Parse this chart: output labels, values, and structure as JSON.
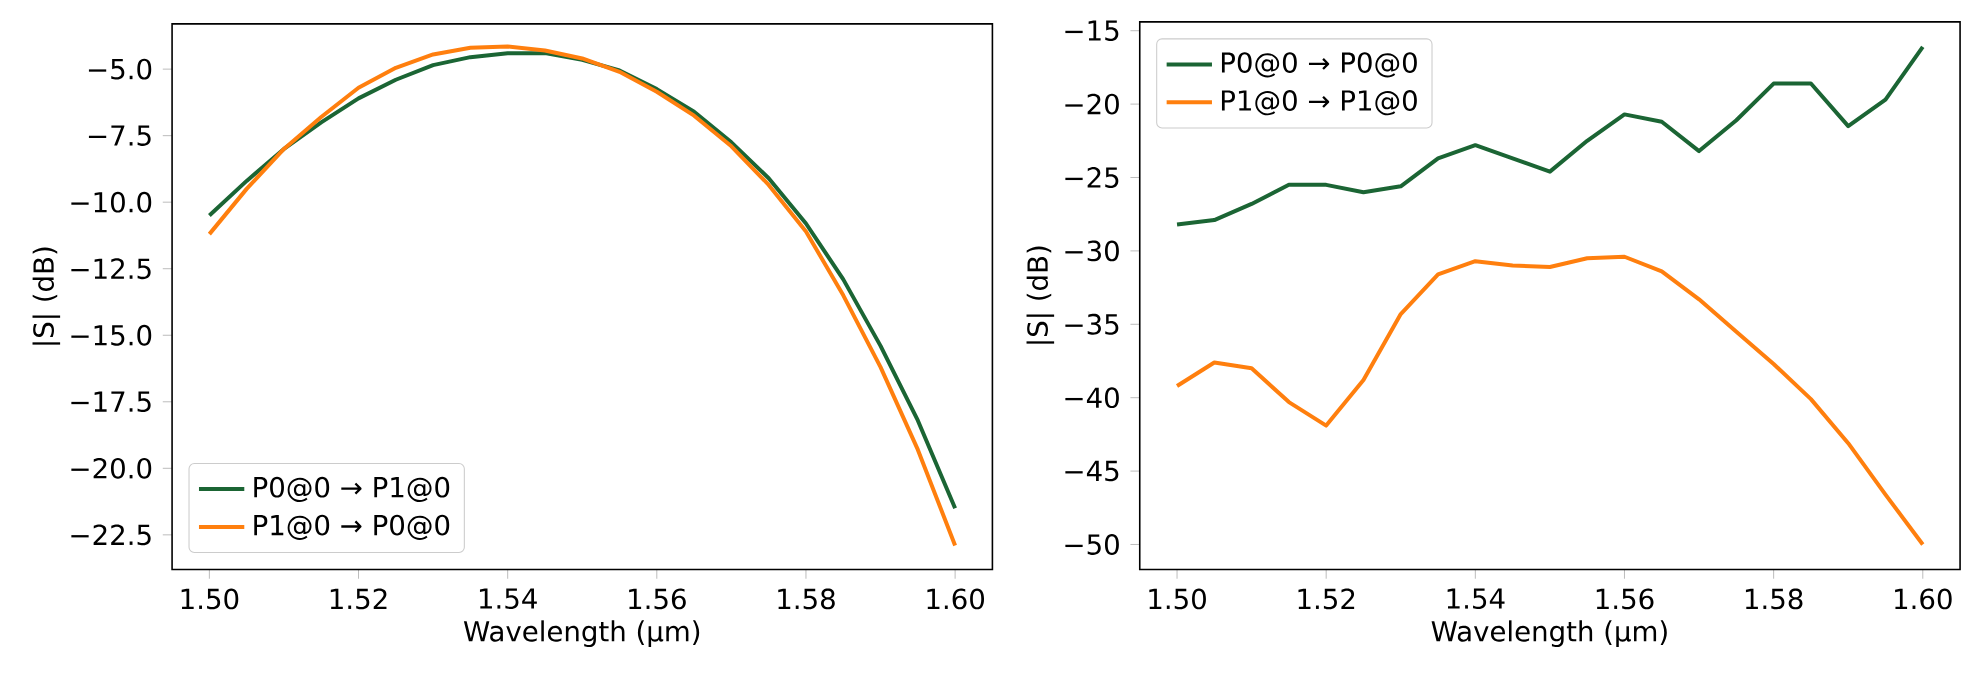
{
  "chart_data": [
    {
      "type": "line",
      "xlabel": "Wavelength (μm)",
      "ylabel": "|S| (dB)",
      "x": [
        1.5,
        1.505,
        1.51,
        1.515,
        1.52,
        1.525,
        1.53,
        1.535,
        1.54,
        1.545,
        1.55,
        1.555,
        1.56,
        1.565,
        1.57,
        1.575,
        1.58,
        1.585,
        1.59,
        1.595,
        1.6
      ],
      "series": [
        {
          "name": "P0@0 → P1@0",
          "color": "#1b6534",
          "values": [
            -10.5,
            -9.2,
            -8.0,
            -7.0,
            -6.1,
            -5.4,
            -4.85,
            -4.55,
            -4.4,
            -4.4,
            -4.65,
            -5.05,
            -5.75,
            -6.6,
            -7.75,
            -9.1,
            -10.8,
            -12.9,
            -15.4,
            -18.2,
            -21.5
          ]
        },
        {
          "name": "P1@0 → P0@0",
          "color": "#ff7f0e",
          "values": [
            -11.2,
            -9.5,
            -8.0,
            -6.8,
            -5.7,
            -4.95,
            -4.45,
            -4.2,
            -4.15,
            -4.3,
            -4.6,
            -5.1,
            -5.85,
            -6.75,
            -7.9,
            -9.35,
            -11.1,
            -13.5,
            -16.2,
            -19.3,
            -22.9
          ]
        }
      ],
      "xlim": [
        1.495,
        1.605
      ],
      "ylim": [
        -23.8,
        -3.3
      ],
      "xticks": [
        {
          "value": 1.5,
          "label": "1.50"
        },
        {
          "value": 1.52,
          "label": "1.52"
        },
        {
          "value": 1.54,
          "label": "1.54"
        },
        {
          "value": 1.56,
          "label": "1.56"
        },
        {
          "value": 1.58,
          "label": "1.58"
        },
        {
          "value": 1.6,
          "label": "1.60"
        }
      ],
      "yticks": [
        {
          "value": -22.5,
          "label": "−22.5"
        },
        {
          "value": -20,
          "label": "−20.0"
        },
        {
          "value": -17.5,
          "label": "−17.5"
        },
        {
          "value": -15,
          "label": "−15.0"
        },
        {
          "value": -12.5,
          "label": "−12.5"
        },
        {
          "value": -10,
          "label": "−10.0"
        },
        {
          "value": -7.5,
          "label": "−7.5"
        },
        {
          "value": -5,
          "label": "−5.0"
        }
      ],
      "legend": "bottom left"
    },
    {
      "type": "line",
      "xlabel": "Wavelength (μm)",
      "ylabel": "|S| (dB)",
      "x": [
        1.5,
        1.505,
        1.51,
        1.515,
        1.52,
        1.525,
        1.53,
        1.535,
        1.54,
        1.545,
        1.55,
        1.555,
        1.56,
        1.565,
        1.57,
        1.575,
        1.58,
        1.585,
        1.59,
        1.595,
        1.6
      ],
      "series": [
        {
          "name": "P0@0 → P0@0",
          "color": "#1b6534",
          "values": [
            -28.2,
            -27.9,
            -26.8,
            -25.5,
            -25.5,
            -26.0,
            -25.6,
            -23.7,
            -22.8,
            -23.7,
            -24.6,
            -22.5,
            -20.7,
            -21.2,
            -23.2,
            -21.1,
            -18.6,
            -18.6,
            -21.5,
            -19.7,
            -16.1
          ]
        },
        {
          "name": "P1@0 → P1@0",
          "color": "#ff7f0e",
          "values": [
            -39.2,
            -37.6,
            -38.0,
            -40.3,
            -41.9,
            -38.8,
            -34.3,
            -31.6,
            -30.7,
            -31.0,
            -31.1,
            -30.5,
            -30.4,
            -31.4,
            -33.3,
            -35.5,
            -37.7,
            -40.1,
            -43.1,
            -46.6,
            -50.0
          ]
        }
      ],
      "xlim": [
        1.495,
        1.605
      ],
      "ylim": [
        -51.7,
        -14.4
      ],
      "xticks": [
        {
          "value": 1.5,
          "label": "1.50"
        },
        {
          "value": 1.52,
          "label": "1.52"
        },
        {
          "value": 1.54,
          "label": "1.54"
        },
        {
          "value": 1.56,
          "label": "1.56"
        },
        {
          "value": 1.58,
          "label": "1.58"
        },
        {
          "value": 1.6,
          "label": "1.60"
        }
      ],
      "yticks": [
        {
          "value": -50,
          "label": "−50"
        },
        {
          "value": -45,
          "label": "−45"
        },
        {
          "value": -40,
          "label": "−40"
        },
        {
          "value": -35,
          "label": "−35"
        },
        {
          "value": -30,
          "label": "−30"
        },
        {
          "value": -25,
          "label": "−25"
        },
        {
          "value": -20,
          "label": "−20"
        },
        {
          "value": -15,
          "label": "−15"
        }
      ],
      "legend": "top left"
    }
  ]
}
